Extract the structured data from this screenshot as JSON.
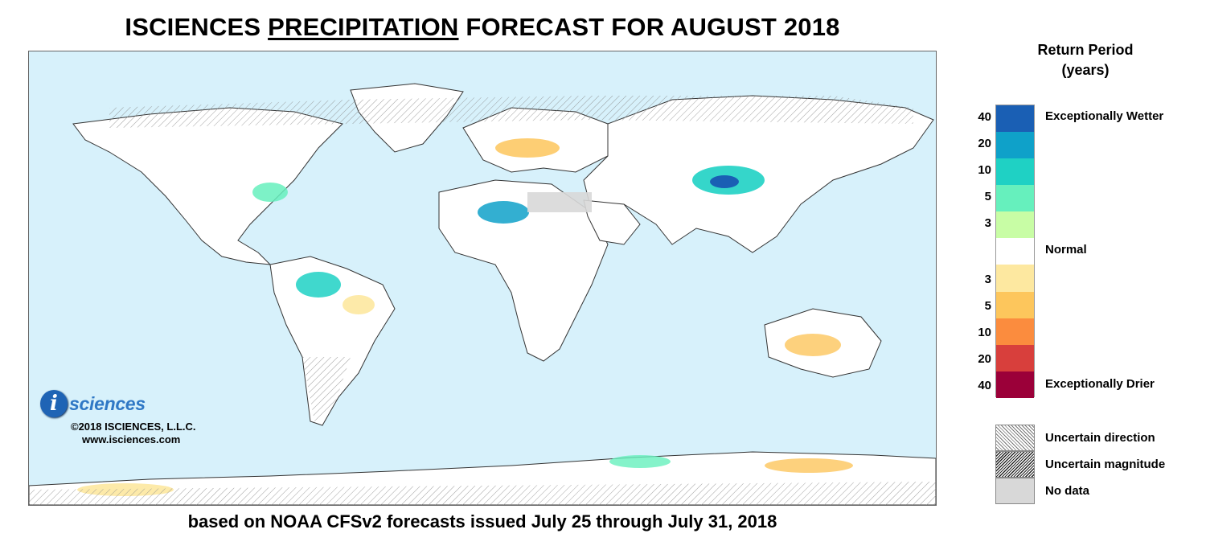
{
  "title": {
    "prefix": "ISCIENCES ",
    "emphasis": "PRECIPITATION",
    "suffix": " FORECAST FOR AUGUST 2018"
  },
  "subtitle": "based on NOAA CFSv2 forecasts issued July 25 through July 31, 2018",
  "logo": {
    "mark": "i",
    "word": "sciences",
    "copyright": "©2018 ISCIENCES, L.L.C.",
    "website": "www.isciences.com"
  },
  "legend": {
    "title_line1": "Return Period",
    "title_line2": "(years)",
    "classes": [
      {
        "years": "40",
        "color": "#1a5fb4"
      },
      {
        "years": "20",
        "color": "#0fa1c9"
      },
      {
        "years": "10",
        "color": "#1fd1c4"
      },
      {
        "years": "5",
        "color": "#66f0bd"
      },
      {
        "years": "3",
        "color": "#c8fda5"
      },
      {
        "years": "",
        "color": "#ffffff"
      },
      {
        "years": "3",
        "color": "#fde8a0"
      },
      {
        "years": "5",
        "color": "#fdc65c"
      },
      {
        "years": "10",
        "color": "#fb8c3e"
      },
      {
        "years": "20",
        "color": "#d83f3c"
      },
      {
        "years": "40",
        "color": "#9b0039"
      }
    ],
    "labels": {
      "wetter": "Exceptionally Wetter",
      "normal": "Normal",
      "drier": "Exceptionally Drier"
    },
    "patterns": {
      "uncertain_direction": "Uncertain direction",
      "uncertain_magnitude": "Uncertain magnitude",
      "no_data": "No data"
    }
  },
  "map": {
    "ocean_color": "#d7f1fb",
    "land_color": "#ffffff",
    "border_color": "#333333"
  }
}
